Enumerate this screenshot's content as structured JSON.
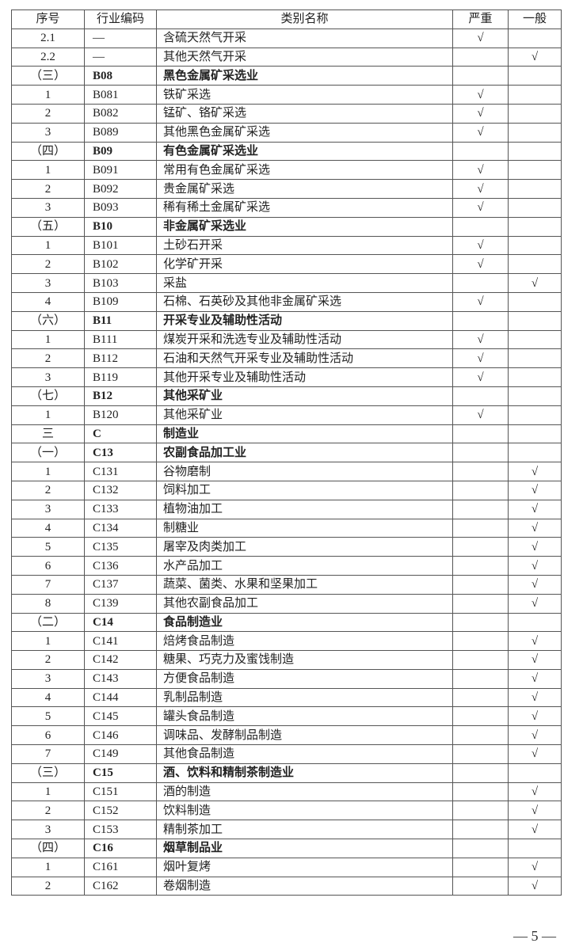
{
  "header": {
    "seq": "序号",
    "code": "行业编码",
    "name": "类别名称",
    "serious": "严重",
    "general": "一般"
  },
  "check_mark": "√",
  "rows": [
    {
      "seq": "2.1",
      "code": "—",
      "name": "含硫天然气开采",
      "serious": true,
      "general": false,
      "section": false
    },
    {
      "seq": "2.2",
      "code": "—",
      "name": "其他天然气开采",
      "serious": false,
      "general": true,
      "section": false
    },
    {
      "seq": "（三）",
      "code": "B08",
      "name": "黑色金属矿采选业",
      "serious": false,
      "general": false,
      "section": true
    },
    {
      "seq": "1",
      "code": "B081",
      "name": "铁矿采选",
      "serious": true,
      "general": false,
      "section": false
    },
    {
      "seq": "2",
      "code": "B082",
      "name": "锰矿、铬矿采选",
      "serious": true,
      "general": false,
      "section": false
    },
    {
      "seq": "3",
      "code": "B089",
      "name": "其他黑色金属矿采选",
      "serious": true,
      "general": false,
      "section": false
    },
    {
      "seq": "（四）",
      "code": "B09",
      "name": "有色金属矿采选业",
      "serious": false,
      "general": false,
      "section": true
    },
    {
      "seq": "1",
      "code": "B091",
      "name": "常用有色金属矿采选",
      "serious": true,
      "general": false,
      "section": false
    },
    {
      "seq": "2",
      "code": "B092",
      "name": "贵金属矿采选",
      "serious": true,
      "general": false,
      "section": false
    },
    {
      "seq": "3",
      "code": "B093",
      "name": "稀有稀土金属矿采选",
      "serious": true,
      "general": false,
      "section": false
    },
    {
      "seq": "（五）",
      "code": "B10",
      "name": "非金属矿采选业",
      "serious": false,
      "general": false,
      "section": true
    },
    {
      "seq": "1",
      "code": "B101",
      "name": "土砂石开采",
      "serious": true,
      "general": false,
      "section": false
    },
    {
      "seq": "2",
      "code": "B102",
      "name": "化学矿开采",
      "serious": true,
      "general": false,
      "section": false
    },
    {
      "seq": "3",
      "code": "B103",
      "name": "采盐",
      "serious": false,
      "general": true,
      "section": false
    },
    {
      "seq": "4",
      "code": "B109",
      "name": "石棉、石英砂及其他非金属矿采选",
      "serious": true,
      "general": false,
      "section": false
    },
    {
      "seq": "（六）",
      "code": "B11",
      "name": "开采专业及辅助性活动",
      "serious": false,
      "general": false,
      "section": true
    },
    {
      "seq": "1",
      "code": "B111",
      "name": "煤炭开采和洗选专业及辅助性活动",
      "serious": true,
      "general": false,
      "section": false
    },
    {
      "seq": "2",
      "code": "B112",
      "name": "石油和天然气开采专业及辅助性活动",
      "serious": true,
      "general": false,
      "section": false
    },
    {
      "seq": "3",
      "code": "B119",
      "name": "其他开采专业及辅助性活动",
      "serious": true,
      "general": false,
      "section": false
    },
    {
      "seq": "（七）",
      "code": "B12",
      "name": "其他采矿业",
      "serious": false,
      "general": false,
      "section": true
    },
    {
      "seq": "1",
      "code": "B120",
      "name": "其他采矿业",
      "serious": true,
      "general": false,
      "section": false
    },
    {
      "seq": "三",
      "code": "C",
      "name": "制造业",
      "serious": false,
      "general": false,
      "section": true
    },
    {
      "seq": "（一）",
      "code": "C13",
      "name": "农副食品加工业",
      "serious": false,
      "general": false,
      "section": true
    },
    {
      "seq": "1",
      "code": "C131",
      "name": "谷物磨制",
      "serious": false,
      "general": true,
      "section": false
    },
    {
      "seq": "2",
      "code": "C132",
      "name": "饲料加工",
      "serious": false,
      "general": true,
      "section": false
    },
    {
      "seq": "3",
      "code": "C133",
      "name": "植物油加工",
      "serious": false,
      "general": true,
      "section": false
    },
    {
      "seq": "4",
      "code": "C134",
      "name": "制糖业",
      "serious": false,
      "general": true,
      "section": false
    },
    {
      "seq": "5",
      "code": "C135",
      "name": "屠宰及肉类加工",
      "serious": false,
      "general": true,
      "section": false
    },
    {
      "seq": "6",
      "code": "C136",
      "name": "水产品加工",
      "serious": false,
      "general": true,
      "section": false
    },
    {
      "seq": "7",
      "code": "C137",
      "name": "蔬菜、菌类、水果和坚果加工",
      "serious": false,
      "general": true,
      "section": false
    },
    {
      "seq": "8",
      "code": "C139",
      "name": "其他农副食品加工",
      "serious": false,
      "general": true,
      "section": false
    },
    {
      "seq": "（二）",
      "code": "C14",
      "name": "食品制造业",
      "serious": false,
      "general": false,
      "section": true
    },
    {
      "seq": "1",
      "code": "C141",
      "name": "焙烤食品制造",
      "serious": false,
      "general": true,
      "section": false
    },
    {
      "seq": "2",
      "code": "C142",
      "name": "糖果、巧克力及蜜饯制造",
      "serious": false,
      "general": true,
      "section": false
    },
    {
      "seq": "3",
      "code": "C143",
      "name": "方便食品制造",
      "serious": false,
      "general": true,
      "section": false
    },
    {
      "seq": "4",
      "code": "C144",
      "name": "乳制品制造",
      "serious": false,
      "general": true,
      "section": false
    },
    {
      "seq": "5",
      "code": "C145",
      "name": "罐头食品制造",
      "serious": false,
      "general": true,
      "section": false
    },
    {
      "seq": "6",
      "code": "C146",
      "name": "调味品、发酵制品制造",
      "serious": false,
      "general": true,
      "section": false
    },
    {
      "seq": "7",
      "code": "C149",
      "name": "其他食品制造",
      "serious": false,
      "general": true,
      "section": false
    },
    {
      "seq": "（三）",
      "code": "C15",
      "name": "酒、饮料和精制茶制造业",
      "serious": false,
      "general": false,
      "section": true
    },
    {
      "seq": "1",
      "code": "C151",
      "name": "酒的制造",
      "serious": false,
      "general": true,
      "section": false
    },
    {
      "seq": "2",
      "code": "C152",
      "name": "饮料制造",
      "serious": false,
      "general": true,
      "section": false
    },
    {
      "seq": "3",
      "code": "C153",
      "name": "精制茶加工",
      "serious": false,
      "general": true,
      "section": false
    },
    {
      "seq": "（四）",
      "code": "C16",
      "name": "烟草制品业",
      "serious": false,
      "general": false,
      "section": true
    },
    {
      "seq": "1",
      "code": "C161",
      "name": "烟叶复烤",
      "serious": false,
      "general": true,
      "section": false
    },
    {
      "seq": "2",
      "code": "C162",
      "name": "卷烟制造",
      "serious": false,
      "general": true,
      "section": false
    }
  ],
  "footer": {
    "page": "— 5 —"
  }
}
